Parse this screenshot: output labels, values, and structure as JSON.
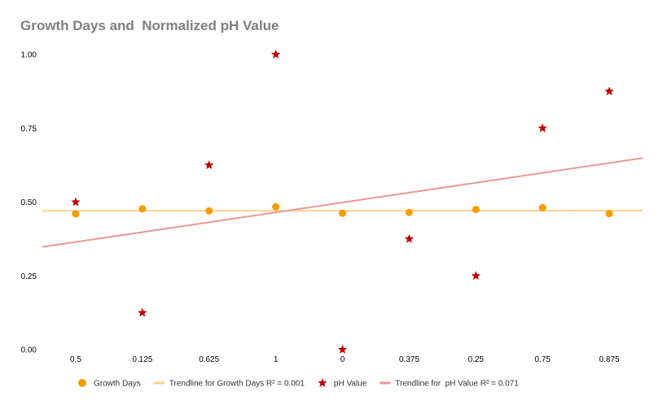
{
  "chart_data": {
    "type": "scatter",
    "title": "Growth Days and  Normalized pH Value",
    "categories": [
      "0.5",
      "0.125",
      "0.625",
      "1",
      "0",
      "0.375",
      "0.25",
      "0.75",
      "0.875"
    ],
    "ylim": [
      0,
      1
    ],
    "yticks": [
      "0.00",
      "0.25",
      "0.50",
      "0.75",
      "1.00"
    ],
    "grid": false,
    "legend_position": "bottom",
    "series": [
      {
        "name": "Growth Days",
        "marker": "circle",
        "color": "#f59c00",
        "values": [
          0.46,
          0.477,
          0.47,
          0.484,
          0.462,
          0.465,
          0.475,
          0.481,
          0.461
        ]
      },
      {
        "name": "pH Value",
        "marker": "star",
        "color": "#c00000",
        "values": [
          0.5,
          0.125,
          0.625,
          1.0,
          0.0,
          0.375,
          0.25,
          0.75,
          0.875
        ]
      }
    ],
    "trendlines": [
      {
        "name": "Trendline for Growth Days R² = 0.001",
        "series": "Growth Days",
        "color": "#fcd38f",
        "start": 0.47,
        "end": 0.471
      },
      {
        "name": "Trendline for  pH Value R² = 0.071",
        "series": "pH Value",
        "color": "#e8999a",
        "start": 0.348,
        "end": 0.649
      }
    ]
  }
}
